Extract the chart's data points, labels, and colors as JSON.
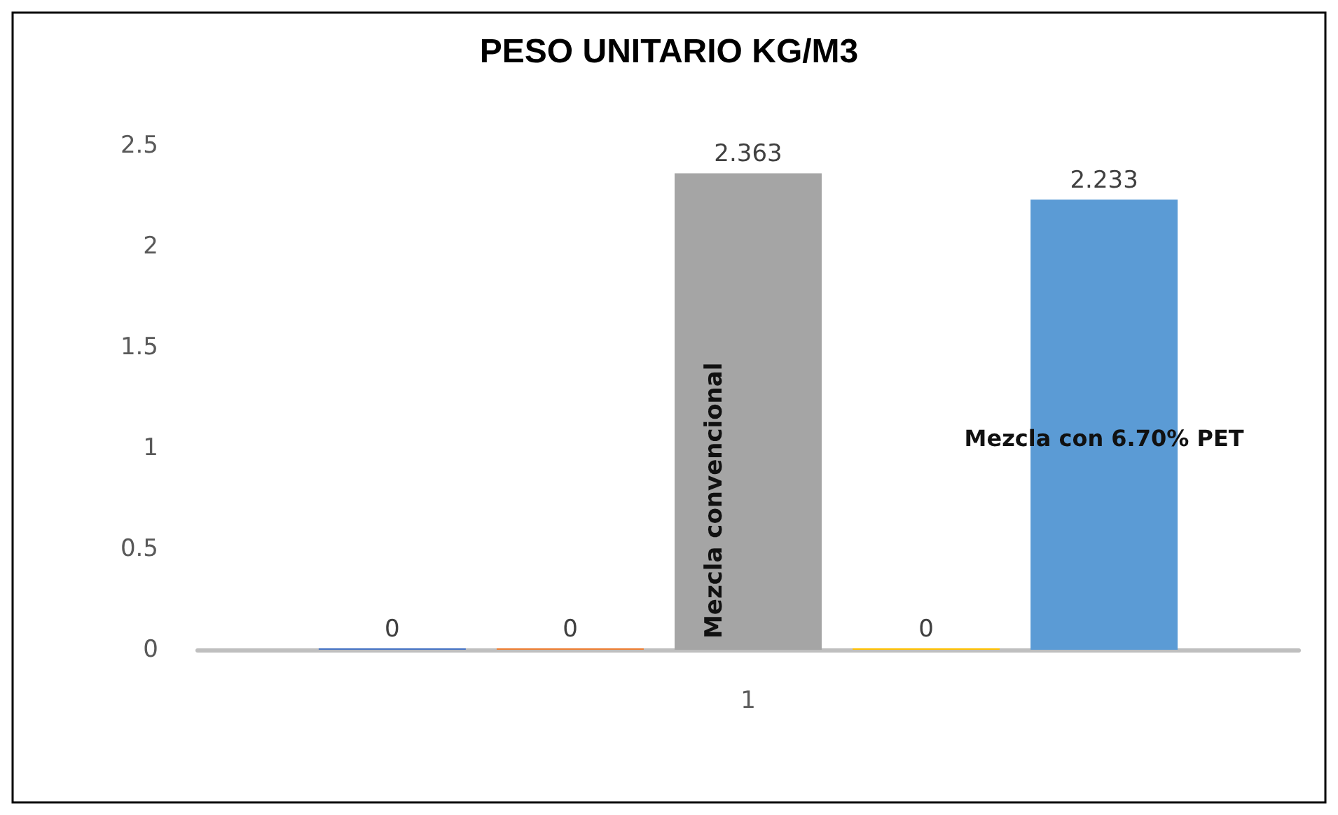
{
  "chart_data": {
    "type": "bar",
    "title": "PESO UNITARIO KG/M3",
    "categories": [
      "1"
    ],
    "series": [
      {
        "color": "#4472c4",
        "values": [
          0
        ]
      },
      {
        "color": "#ed7d31",
        "values": [
          0
        ]
      },
      {
        "name": "Mezcla convencional",
        "color": "#a5a5a5",
        "values": [
          2.363
        ]
      },
      {
        "color": "#ffc000",
        "values": [
          0
        ]
      },
      {
        "name": "Mezcla con 6.70% PET",
        "color": "#5b9bd5",
        "values": [
          2.233
        ]
      }
    ],
    "ylim": [
      0,
      2.5
    ],
    "yticks": [
      0,
      0.5,
      1,
      1.5,
      2,
      2.5
    ],
    "grid": false,
    "legend": false,
    "data_labels": true
  }
}
